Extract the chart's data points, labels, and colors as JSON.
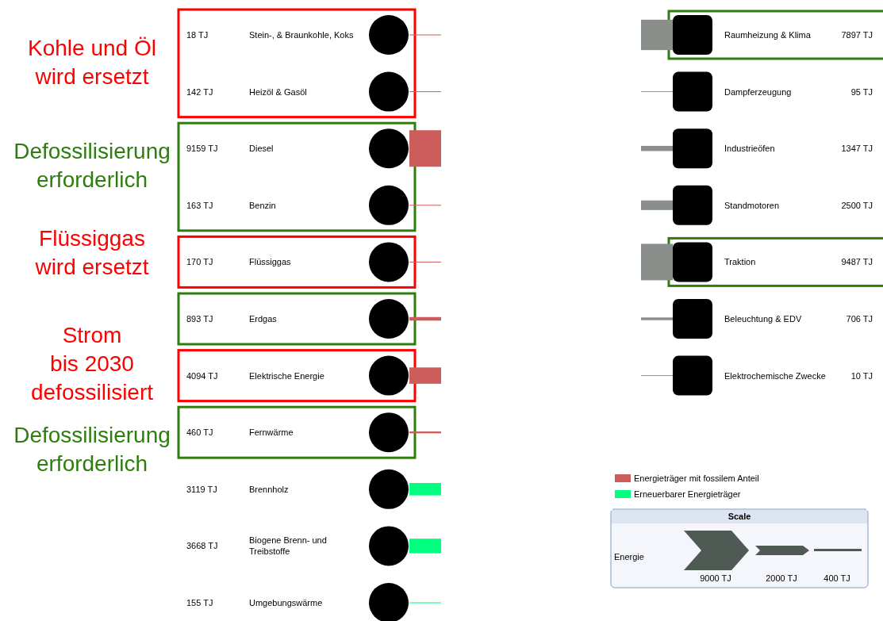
{
  "chart_data": [
    {
      "type": "other",
      "categories": [
        "Stein-, & Braunkohle, Koks",
        "Heizöl & Gasöl",
        "Diesel",
        "Benzin",
        "Flüssiggas",
        "Erdgas",
        "Elektrische Energie",
        "Fernwärme",
        "Brennholz",
        "Biogene Brenn- und Treibstoffe",
        "Umgebungswärme"
      ],
      "series": [
        {
          "name": "Energieträger mit fossilem Anteil",
          "color": "#cd5c5c",
          "values": [
            18,
            142,
            9159,
            163,
            170,
            893,
            4094,
            460,
            null,
            null,
            null
          ],
          "value_labels": [
            "18 TJ",
            "142 TJ",
            "9159 TJ",
            "163 TJ",
            "170 TJ",
            "893 TJ",
            "4094 TJ",
            "460 TJ",
            null,
            null,
            null
          ]
        },
        {
          "name": "Erneuerbarer Energieträger",
          "color": "#00ff7f",
          "values": [
            null,
            null,
            null,
            null,
            null,
            null,
            null,
            null,
            3119,
            3668,
            155
          ],
          "value_labels": [
            null,
            null,
            null,
            null,
            null,
            null,
            null,
            null,
            "3119 TJ",
            "3668 TJ",
            "155 TJ"
          ]
        }
      ],
      "legend": "bottom right",
      "annotations": [
        "Kohle und Öl\nwird ersetzt",
        "Defossilisierung\nerforderlich",
        "Flüssiggas\nwird ersetzt",
        "Strom\nbis 2030\ndefossilisiert",
        "Defossilisierung\nerforderlich"
      ]
    },
    {
      "type": "other",
      "categories": [
        "Raumheizung & Klima",
        "Dampferzeugung",
        "Industrieöfen",
        "Standmotoren",
        "Traktion",
        "Beleuchtung & EDV",
        "Elektrochemische Zwecke"
      ],
      "values": [
        7897,
        95,
        1347,
        2500,
        9487,
        706,
        10
      ],
      "value_labels": [
        "7897 TJ",
        "95 TJ",
        "1347 TJ",
        "2500 TJ",
        "9487 TJ",
        "706 TJ",
        "10 TJ"
      ],
      "annotations": [
        "Scale",
        "Energie",
        "9000 TJ",
        "2000 TJ",
        "400 TJ"
      ]
    }
  ]
}
